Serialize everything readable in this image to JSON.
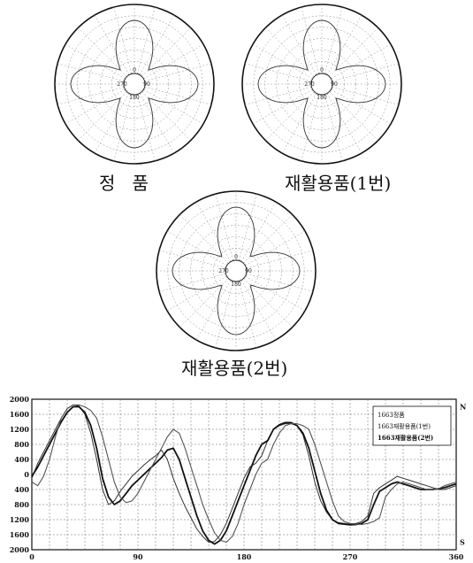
{
  "polar_charts": [
    {
      "caption": "정   품",
      "angle_labels": [
        "0",
        "90",
        "180",
        "270"
      ]
    },
    {
      "caption": "재활용품(1번)",
      "angle_labels": [
        "0",
        "90",
        "180",
        "270"
      ]
    },
    {
      "caption": "재활용품(2번)",
      "angle_labels": [
        "0",
        "90",
        "180",
        "270"
      ]
    }
  ],
  "chart_data": {
    "type": "line",
    "x_ticks": [
      0,
      90,
      180,
      270,
      360
    ],
    "y_ticks": [
      "2000",
      "1600",
      "1200",
      "800",
      "400",
      "0",
      "400",
      "800",
      "1200",
      "1600",
      "2000"
    ],
    "ylim": [
      -2000,
      2000
    ],
    "xlim": [
      0,
      360
    ],
    "grid": true,
    "legend_position": "top-right",
    "right_labels": [
      "N",
      "S"
    ],
    "series": [
      {
        "name": "1663정품",
        "x": [
          0,
          5,
          10,
          15,
          20,
          25,
          30,
          35,
          40,
          45,
          50,
          55,
          60,
          65,
          70,
          75,
          80,
          85,
          90,
          95,
          100,
          105,
          110,
          115,
          120,
          125,
          130,
          135,
          140,
          145,
          150,
          155,
          160,
          165,
          170,
          175,
          180,
          185,
          190,
          195,
          200,
          205,
          210,
          215,
          220,
          225,
          230,
          235,
          240,
          245,
          250,
          255,
          260,
          265,
          270,
          275,
          280,
          285,
          290,
          295,
          300,
          305,
          310,
          315,
          320,
          325,
          330,
          335,
          340,
          345,
          350,
          355,
          360
        ],
        "y": [
          -100,
          300,
          600,
          900,
          1200,
          1500,
          1750,
          1850,
          1820,
          1600,
          1100,
          400,
          -400,
          -800,
          -700,
          -450,
          -250,
          -50,
          100,
          250,
          380,
          500,
          650,
          400,
          -100,
          -500,
          -850,
          -1150,
          -1450,
          -1650,
          -1800,
          -1780,
          -1600,
          -1300,
          -900,
          -500,
          -100,
          200,
          300,
          500,
          900,
          1200,
          1300,
          1350,
          1350,
          1300,
          1050,
          500,
          -200,
          -700,
          -1000,
          -1200,
          -1280,
          -1300,
          -1320,
          -1300,
          -1250,
          -1100,
          -500,
          -350,
          -250,
          -150,
          -50,
          -100,
          -150,
          -200,
          -250,
          -300,
          -350,
          -400,
          -400,
          -350,
          -300
        ]
      },
      {
        "name": "1663재활용품(1번)",
        "x": [
          0,
          5,
          10,
          15,
          20,
          25,
          30,
          35,
          40,
          45,
          50,
          55,
          60,
          65,
          70,
          75,
          80,
          85,
          90,
          95,
          100,
          105,
          110,
          115,
          120,
          125,
          130,
          135,
          140,
          145,
          150,
          155,
          160,
          165,
          170,
          175,
          180,
          185,
          190,
          195,
          200,
          205,
          210,
          215,
          220,
          225,
          230,
          235,
          240,
          245,
          250,
          255,
          260,
          265,
          270,
          275,
          280,
          285,
          290,
          295,
          300,
          305,
          310,
          315,
          320,
          325,
          330,
          335,
          340,
          345,
          350,
          355,
          360
        ],
        "y": [
          -50,
          200,
          500,
          800,
          1100,
          1400,
          1650,
          1800,
          1800,
          1650,
          1300,
          700,
          -100,
          -600,
          -800,
          -700,
          -500,
          -300,
          -150,
          0,
          150,
          300,
          450,
          650,
          700,
          400,
          -100,
          -600,
          -1100,
          -1500,
          -1750,
          -1850,
          -1750,
          -1500,
          -1100,
          -700,
          -300,
          100,
          500,
          800,
          900,
          1200,
          1320,
          1380,
          1380,
          1300,
          1100,
          700,
          100,
          -500,
          -950,
          -1200,
          -1300,
          -1320,
          -1340,
          -1330,
          -1300,
          -1200,
          -800,
          -450,
          -350,
          -250,
          -200,
          -250,
          -300,
          -350,
          -400,
          -400,
          -400,
          -380,
          -350,
          -300,
          -250
        ]
      },
      {
        "name": "1663재활용품(2번)",
        "x": [
          0,
          5,
          10,
          15,
          20,
          25,
          30,
          35,
          40,
          45,
          50,
          55,
          60,
          65,
          70,
          75,
          80,
          85,
          90,
          95,
          100,
          105,
          110,
          115,
          120,
          125,
          130,
          135,
          140,
          145,
          150,
          155,
          160,
          165,
          170,
          175,
          180,
          185,
          190,
          195,
          200,
          205,
          210,
          215,
          220,
          225,
          230,
          235,
          240,
          245,
          250,
          255,
          260,
          265,
          270,
          275,
          280,
          285,
          290,
          295,
          300,
          305,
          310,
          315,
          320,
          325,
          330,
          335,
          340,
          345,
          350,
          355,
          360
        ],
        "y": [
          -200,
          -300,
          -50,
          400,
          1000,
          1500,
          1750,
          1850,
          1850,
          1800,
          1700,
          1500,
          1000,
          400,
          -200,
          -600,
          -750,
          -700,
          -500,
          -200,
          100,
          400,
          700,
          1000,
          1200,
          1100,
          700,
          200,
          -300,
          -800,
          -1200,
          -1550,
          -1750,
          -1800,
          -1650,
          -1300,
          -800,
          -400,
          0,
          300,
          400,
          800,
          1100,
          1300,
          1350,
          1350,
          1300,
          1200,
          800,
          300,
          -200,
          -700,
          -1100,
          -1250,
          -1300,
          -1320,
          -1330,
          -1300,
          -1250,
          -1150,
          -600,
          -400,
          -250,
          -200,
          -250,
          -300,
          -350,
          -400,
          -400,
          -380,
          -300,
          -250,
          -200
        ]
      }
    ]
  }
}
